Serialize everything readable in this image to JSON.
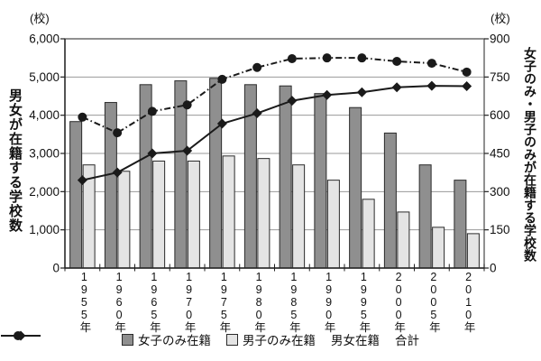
{
  "chart_data": {
    "type": "combo-bar-line",
    "title": "",
    "categories": [
      "1955年",
      "1960年",
      "1965年",
      "1970年",
      "1975年",
      "1980年",
      "1985年",
      "1990年",
      "1995年",
      "2000年",
      "2005年",
      "2010年"
    ],
    "series": [
      {
        "name": "女子のみ在籍",
        "type": "bar",
        "axis": "right",
        "color": "#8f8f8f",
        "values": [
          575,
          650,
          720,
          735,
          745,
          720,
          715,
          685,
          630,
          530,
          405,
          345
        ]
      },
      {
        "name": "男子のみ在籍",
        "type": "bar",
        "axis": "right",
        "color": "#e4e4e4",
        "values": [
          405,
          380,
          420,
          420,
          440,
          430,
          405,
          345,
          270,
          220,
          160,
          135
        ]
      },
      {
        "name": "男女在籍",
        "type": "line",
        "axis": "left",
        "color": "#1a1a1a",
        "marker": "diamond",
        "line_style": "solid",
        "values": [
          2300,
          2500,
          3000,
          3070,
          3780,
          4050,
          4380,
          4530,
          4600,
          4730,
          4770,
          4760
        ]
      },
      {
        "name": "合計",
        "type": "line",
        "axis": "left",
        "color": "#1a1a1a",
        "marker": "circle",
        "line_style": "dash-dot",
        "values": [
          3950,
          3540,
          4100,
          4270,
          4940,
          5250,
          5480,
          5500,
          5500,
          5410,
          5360,
          5130
        ]
      }
    ],
    "left_axis": {
      "unit": "(校)",
      "title": "男女が在籍する学校数",
      "min": 0,
      "max": 6000,
      "step": 1000,
      "tick_labels": [
        "6,000",
        "5,000",
        "4,000",
        "3,000",
        "2,000",
        "1,000",
        "0"
      ]
    },
    "right_axis": {
      "unit": "(校)",
      "title": "女子のみ・男子のみが在籍する学校数",
      "min": 0,
      "max": 900,
      "step": 150,
      "tick_labels": [
        "900",
        "750",
        "600",
        "450",
        "300",
        "150",
        "0"
      ]
    },
    "grid": true,
    "legend_position": "bottom",
    "colors": {
      "grid": "#9a9a9a",
      "frame": "#555555",
      "axis": "#222222",
      "text": "#111111"
    }
  }
}
